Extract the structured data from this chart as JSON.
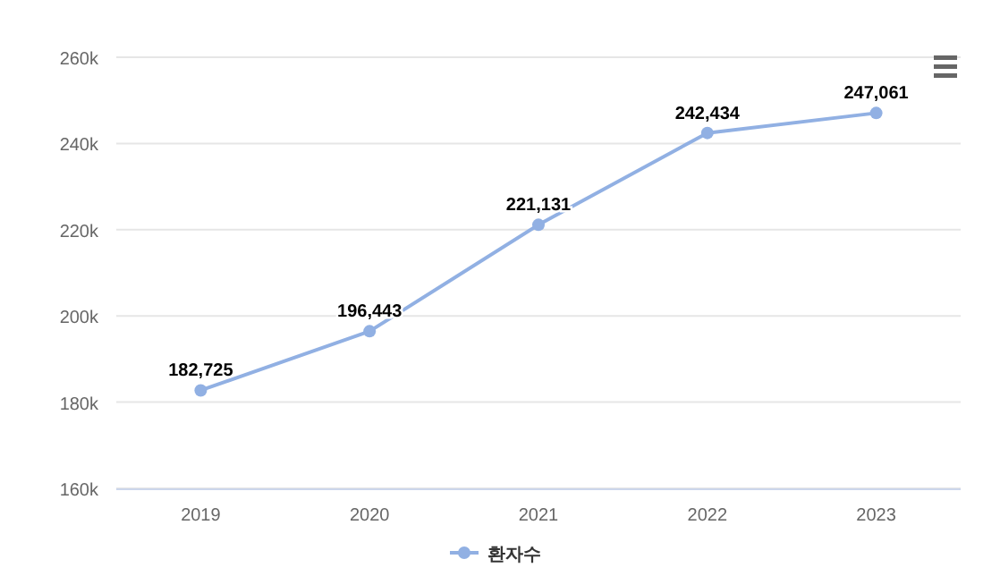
{
  "chart_data": {
    "type": "line",
    "categories": [
      "2019",
      "2020",
      "2021",
      "2022",
      "2023"
    ],
    "series": [
      {
        "name": "환자수",
        "color": "#91b0e3",
        "values": [
          182725,
          196443,
          221131,
          242434,
          247061
        ],
        "value_labels": [
          "182,725",
          "196,443",
          "221,131",
          "242,434",
          "247,061"
        ]
      }
    ],
    "ylim": [
      160000,
      260000
    ],
    "yticks": [
      {
        "value": 160000,
        "label": "160k"
      },
      {
        "value": 180000,
        "label": "180k"
      },
      {
        "value": 200000,
        "label": "200k"
      },
      {
        "value": 220000,
        "label": "220k"
      },
      {
        "value": 240000,
        "label": "240k"
      },
      {
        "value": 260000,
        "label": "260k"
      }
    ],
    "grid": "y",
    "legend": "bottom",
    "marker": "circle",
    "line_style": "solid"
  }
}
